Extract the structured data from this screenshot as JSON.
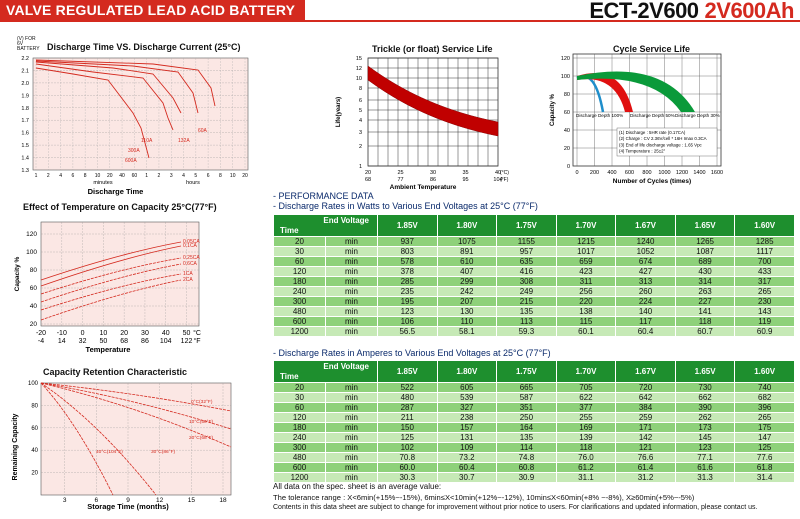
{
  "header": {
    "banner": "VALVE REGULATED LEAD ACID BATTERY",
    "model": "ECT-2V600",
    "rating": "2V600Ah"
  },
  "discharge_chart": {
    "title": "Discharge Time VS. Discharge Current (25°C)",
    "yunit": "(V) FOR 6V BATTERY",
    "yticks": [
      "2.2",
      "2.1",
      "2.0",
      "1.9",
      "1.8",
      "1.7",
      "1.6",
      "1.5",
      "1.4",
      "1.3"
    ],
    "xticks": [
      "1",
      "2",
      "4",
      "6",
      "8",
      "10",
      "20",
      "40",
      "60",
      "1",
      "2",
      "3",
      "4",
      "5",
      "6",
      "8",
      "10",
      "20"
    ],
    "minutes_label": "minutes",
    "hours_label": "hours",
    "xlabel": "Discharge Time",
    "curve_labels": [
      "600A",
      "300A",
      "110A",
      "132A",
      "60A"
    ],
    "chart_data": {
      "type": "line",
      "title": "Discharge Time VS. Discharge Current (25°C)",
      "xlabel": "Discharge Time",
      "ylabel": "(V) FOR 6V BATTERY",
      "ylim": [
        1.3,
        2.2
      ],
      "series": [
        {
          "name": "600A"
        },
        {
          "name": "300A"
        },
        {
          "name": "110A"
        },
        {
          "name": "132A"
        },
        {
          "name": "60A"
        }
      ]
    }
  },
  "trickle_chart": {
    "title": "Trickle (or float) Service Life",
    "ylabel": "Life(years)",
    "yticks": [
      "15",
      "12",
      "10",
      "8",
      "6",
      "5",
      "4",
      "3",
      "2",
      "1"
    ],
    "xticks_c": [
      "20",
      "25",
      "30",
      "35",
      "40"
    ],
    "xunit_c": "(°C)",
    "xticks_f": [
      "68",
      "77",
      "86",
      "95",
      "104"
    ],
    "xunit_f": "(°F)",
    "xlabel": "Ambient Temperature",
    "chart_data": {
      "type": "line",
      "title": "Trickle (or float) Service Life",
      "xlabel": "Ambient Temperature",
      "ylabel": "Life(years)",
      "x": [
        20,
        25,
        30,
        35,
        40
      ],
      "series": [
        {
          "values": [
            14,
            10,
            7.2,
            5.2,
            3.8
          ]
        }
      ]
    }
  },
  "cycle_chart": {
    "title": "Cycle Service Life",
    "ylabel": "Capacity %",
    "yticks": [
      "120",
      "100",
      "80",
      "60",
      "40",
      "20",
      "0"
    ],
    "xticks": [
      "0",
      "200",
      "400",
      "600",
      "800",
      "1000",
      "1200",
      "1400",
      "1600"
    ],
    "xlabel": "Number of Cycles (times)",
    "depth_labels": [
      "Discharge Depth 100%",
      "Discharge Depth 50%",
      "Discharge Depth 30%"
    ],
    "notes": [
      "(1) Discharge : 5HR rate (0.17CA)",
      "(2) Charge : CV 2.36V/cell * 16H Imax 0.3CA",
      "(3) End of life discharge voltage : 1.65 Vpc",
      "(4) Temperature : 25±2°"
    ],
    "chart_data": {
      "type": "line",
      "title": "Cycle Service Life",
      "xlabel": "Number of Cycles (times)",
      "ylabel": "Capacity %",
      "ylim": [
        0,
        120
      ],
      "series": [
        {
          "name": "Discharge Depth 100%",
          "x": [
            0,
            100,
            150,
            200
          ],
          "values": [
            100,
            100,
            80,
            60
          ]
        },
        {
          "name": "Discharge Depth 50%",
          "x": [
            0,
            200,
            350,
            450
          ],
          "values": [
            100,
            100,
            80,
            60
          ]
        },
        {
          "name": "Discharge Depth 30%",
          "x": [
            0,
            400,
            700,
            900
          ],
          "values": [
            100,
            100,
            80,
            60
          ]
        }
      ]
    }
  },
  "temp_chart": {
    "title": "Effect of Temperature on Capacity 25°C(77°F)",
    "ylabel": "Capacity %",
    "yticks": [
      "120",
      "100",
      "80",
      "60",
      "40",
      "20"
    ],
    "xticks_c": [
      "-20",
      "-10",
      "0",
      "10",
      "20",
      "30",
      "40",
      "50"
    ],
    "xunit_c": "°C",
    "xticks_f": [
      "-4",
      "14",
      "32",
      "50",
      "68",
      "86",
      "104",
      "122"
    ],
    "xunit_f": "°F",
    "xlabel": "Temperature",
    "curve_labels": [
      "0.05CA",
      "0.1CA",
      "0.25CA",
      "0.6CA",
      "1CA",
      "2CA"
    ],
    "chart_data": {
      "type": "line",
      "title": "Effect of Temperature on Capacity 25°C(77°F)",
      "xlabel": "Temperature",
      "ylabel": "Capacity %",
      "ylim": [
        0,
        120
      ],
      "series": [
        {
          "name": "0.05CA"
        },
        {
          "name": "0.1CA"
        },
        {
          "name": "0.25CA"
        },
        {
          "name": "0.6CA"
        },
        {
          "name": "1CA"
        },
        {
          "name": "2CA"
        }
      ]
    }
  },
  "retention_chart": {
    "title": "Capacity Retention Characteristic",
    "ylabel": "Remaining Capacity",
    "yticks": [
      "100",
      "80",
      "60",
      "40",
      "20"
    ],
    "xticks": [
      "3",
      "6",
      "9",
      "12",
      "15",
      "18"
    ],
    "xlabel": "Storage Time (months)",
    "curve_labels": [
      "0°C(32°F)",
      "10°C(50°F)",
      "20°C(68°F)",
      "30°C(86°F)",
      "40°C(104°F)"
    ],
    "chart_data": {
      "type": "line",
      "title": "Capacity Retention Characteristic",
      "xlabel": "Storage Time (months)",
      "ylabel": "Remaining Capacity",
      "ylim": [
        0,
        100
      ],
      "series": [
        {
          "name": "0°C(32°F)",
          "x": [
            0,
            18
          ],
          "values": [
            100,
            85
          ]
        },
        {
          "name": "10°C(50°F)",
          "x": [
            0,
            18
          ],
          "values": [
            100,
            75
          ]
        },
        {
          "name": "20°C(68°F)",
          "x": [
            0,
            18
          ],
          "values": [
            100,
            66
          ]
        },
        {
          "name": "30°C(86°F)",
          "x": [
            0,
            12
          ],
          "values": [
            100,
            55
          ]
        },
        {
          "name": "40°C(104°F)",
          "x": [
            0,
            8
          ],
          "values": [
            100,
            55
          ]
        }
      ]
    }
  },
  "perf": {
    "title": "- PERFORMANCE DATA",
    "sub1": "- Discharge Rates in Watts to Various End Voltages at 25°C (77°F)",
    "sub2": "- Discharge Rates in Amperes to Various End Voltages at 25°C (77°F)",
    "corner_top": "End Voltage",
    "corner_bottom": "Time",
    "voltages": [
      "1.85V",
      "1.80V",
      "1.75V",
      "1.70V",
      "1.67V",
      "1.65V",
      "1.60V"
    ],
    "watts": [
      [
        "20",
        "min",
        "937",
        "1075",
        "1155",
        "1215",
        "1240",
        "1265",
        "1285"
      ],
      [
        "30",
        "min",
        "803",
        "891",
        "957",
        "1017",
        "1052",
        "1087",
        "1117"
      ],
      [
        "60",
        "min",
        "578",
        "610",
        "635",
        "659",
        "674",
        "689",
        "700"
      ],
      [
        "120",
        "min",
        "378",
        "407",
        "416",
        "423",
        "427",
        "430",
        "433"
      ],
      [
        "180",
        "min",
        "285",
        "299",
        "308",
        "311",
        "313",
        "314",
        "317"
      ],
      [
        "240",
        "min",
        "235",
        "242",
        "249",
        "256",
        "260",
        "263",
        "265"
      ],
      [
        "300",
        "min",
        "195",
        "207",
        "215",
        "220",
        "224",
        "227",
        "230"
      ],
      [
        "480",
        "min",
        "123",
        "130",
        "135",
        "138",
        "140",
        "141",
        "143"
      ],
      [
        "600",
        "min",
        "106",
        "110",
        "113",
        "115",
        "117",
        "118",
        "119"
      ],
      [
        "1200",
        "min",
        "56.5",
        "58.1",
        "59.3",
        "60.1",
        "60.4",
        "60.7",
        "60.9"
      ]
    ],
    "amps": [
      [
        "20",
        "min",
        "522",
        "605",
        "665",
        "705",
        "720",
        "730",
        "740"
      ],
      [
        "30",
        "min",
        "480",
        "539",
        "587",
        "622",
        "642",
        "662",
        "682"
      ],
      [
        "60",
        "min",
        "287",
        "327",
        "351",
        "377",
        "384",
        "390",
        "396"
      ],
      [
        "120",
        "min",
        "211",
        "238",
        "250",
        "255",
        "259",
        "262",
        "265"
      ],
      [
        "180",
        "min",
        "150",
        "157",
        "164",
        "169",
        "171",
        "173",
        "175"
      ],
      [
        "240",
        "min",
        "125",
        "131",
        "135",
        "139",
        "142",
        "145",
        "147"
      ],
      [
        "300",
        "min",
        "102",
        "109",
        "114",
        "118",
        "121",
        "123",
        "125"
      ],
      [
        "480",
        "min",
        "70.8",
        "73.2",
        "74.8",
        "76.0",
        "76.6",
        "77.1",
        "77.6"
      ],
      [
        "600",
        "min",
        "60.0",
        "60.4",
        "60.8",
        "61.2",
        "61.4",
        "61.6",
        "61.8"
      ],
      [
        "1200",
        "min",
        "30.3",
        "30.7",
        "30.9",
        "31.1",
        "31.2",
        "31.3",
        "31.4"
      ]
    ]
  },
  "footer": {
    "line1": "All data on the spec. sheet is an average value:",
    "line2": "The tolerance range : X<6min(+15%~-15%), 6min≤X<10min(+12%~-12%), 10min≤X<60min(+8% ~-8%), X≥60min(+5%~-5%)",
    "line3": "Contents in this data sheet are subject to change for improvement without prior notice to users.   For clarifications and updated information, please contact us."
  },
  "colors": {
    "red": "#d42a1f",
    "green": "#1e8f2e",
    "dark_red": "#c00000",
    "blue": "#1f8ecb"
  }
}
